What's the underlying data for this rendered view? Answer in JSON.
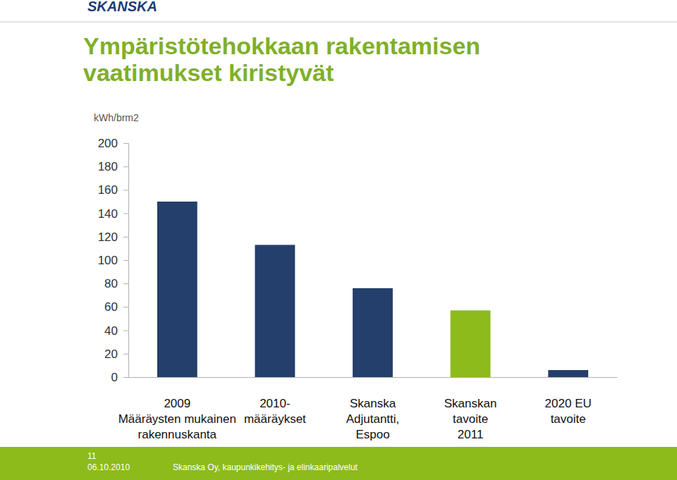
{
  "chart_data": {
    "type": "bar",
    "title": "Ympäristötehokkaan rakentamisen\nvaatimukset kiristyvät",
    "y_label": "kWh/brm2",
    "categories": [
      "2009\nMääräysten mukainen\nrakennuskanta",
      "2010-\nmääräykset",
      "Skanska\nAdjutantti,\nEspoo",
      "Skanskan\ntavoite\n2011",
      "2020 EU\ntavoite"
    ],
    "values": [
      150,
      113,
      76,
      57,
      6
    ],
    "colors": [
      "#243f6b",
      "#243f6b",
      "#243f6b",
      "#8cbb1b",
      "#243f6b"
    ],
    "ylim": [
      0,
      200
    ],
    "yticks": [
      0,
      20,
      40,
      60,
      80,
      100,
      120,
      140,
      160,
      180,
      200
    ],
    "grid": false,
    "annotations": [
      "SKANSKA",
      "11",
      "06.10.2010",
      "Skanska Oy, kaupunkikehitys- ja elinkaaripalvelut"
    ]
  }
}
